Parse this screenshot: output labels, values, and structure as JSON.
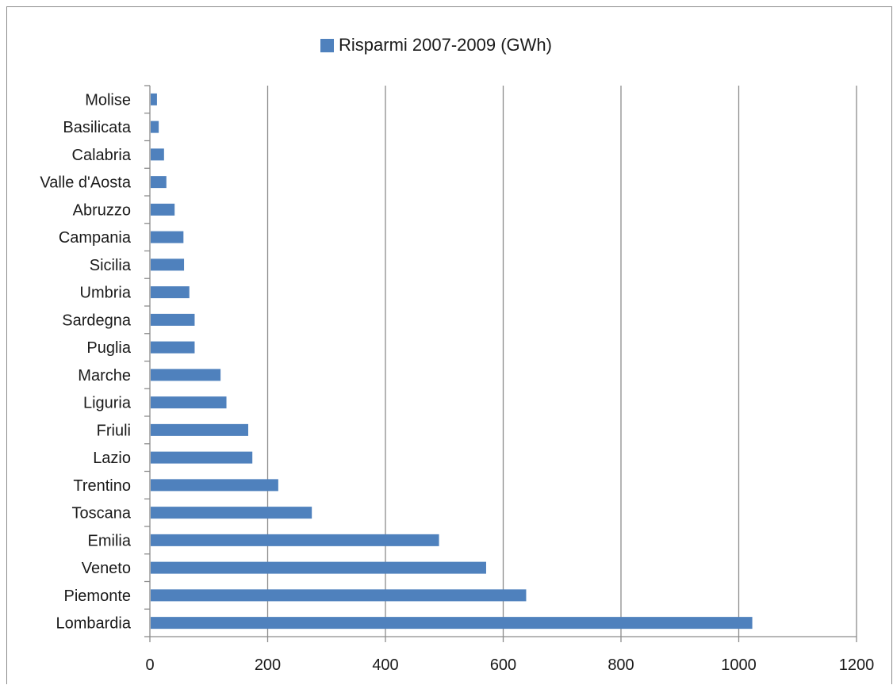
{
  "chart_data": {
    "type": "bar",
    "orientation": "horizontal",
    "categories": [
      "Lombardia",
      "Piemonte",
      "Veneto",
      "Emilia",
      "Toscana",
      "Trentino",
      "Lazio",
      "Friuli",
      "Liguria",
      "Marche",
      "Puglia",
      "Sardegna",
      "Umbria",
      "Sicilia",
      "Campania",
      "Abruzzo",
      "Valle d'Aosta",
      "Calabria",
      "Basilicata",
      "Molise"
    ],
    "series": [
      {
        "name": "Risparmi 2007-2009 (GWh)",
        "color": "#4f81bd",
        "values": [
          1023,
          639,
          571,
          491,
          275,
          218,
          174,
          167,
          130,
          120,
          76,
          76,
          67,
          58,
          57,
          42,
          28,
          24,
          15,
          12
        ]
      }
    ],
    "xlim": [
      0,
      1200
    ],
    "x_ticks": [
      "0",
      "200",
      "400",
      "600",
      "800",
      "1000",
      "1200"
    ],
    "grid": "vertical major gridlines",
    "legend_position": "top",
    "title": "",
    "xlabel": "",
    "ylabel": ""
  }
}
